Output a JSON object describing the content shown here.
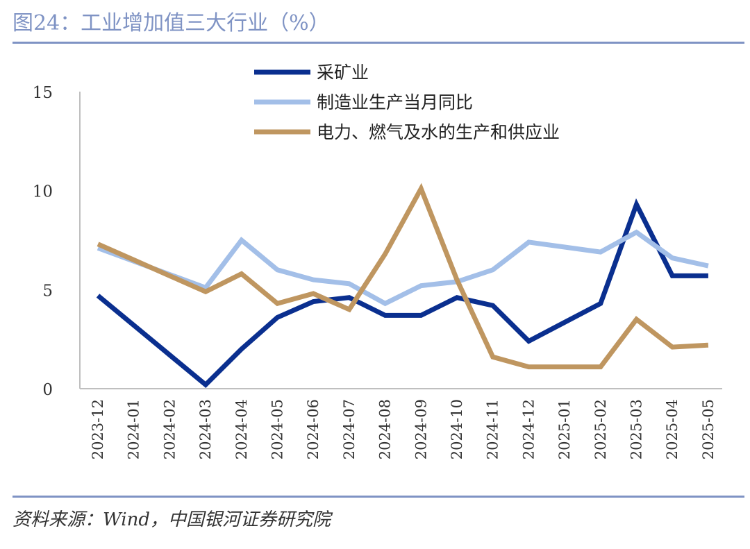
{
  "header": {
    "title": "图24：工业增加值三大行业（%）"
  },
  "footer": {
    "source": "资料来源：Wind，中国银河证券研究院"
  },
  "chart_data": {
    "type": "line",
    "title": "图24：工业增加值三大行业（%）",
    "xlabel": "",
    "ylabel": "",
    "ylim": [
      0,
      15
    ],
    "yticks": [
      0,
      5,
      10,
      15
    ],
    "grid": false,
    "legend_position": "top-center",
    "categories": [
      "2023-12",
      "2024-01",
      "2024-02",
      "2024-03",
      "2024-04",
      "2024-05",
      "2024-06",
      "2024-07",
      "2024-08",
      "2024-09",
      "2024-10",
      "2024-11",
      "2024-12",
      "2025-01",
      "2025-02",
      "2025-03",
      "2025-04",
      "2025-05"
    ],
    "series": [
      {
        "name": "采矿业",
        "color": "#0a2f8f",
        "values": [
          4.7,
          null,
          null,
          0.2,
          2.0,
          3.6,
          4.4,
          4.6,
          3.7,
          3.7,
          4.6,
          4.2,
          2.4,
          null,
          4.3,
          9.3,
          5.7,
          5.7
        ]
      },
      {
        "name": "制造业生产当月同比",
        "color": "#a3bfe8",
        "values": [
          7.1,
          null,
          null,
          5.1,
          7.5,
          6.0,
          5.5,
          5.3,
          4.3,
          5.2,
          5.4,
          6.0,
          7.4,
          null,
          6.9,
          7.9,
          6.6,
          6.2
        ]
      },
      {
        "name": "电力、燃气及水的生产和供应业",
        "color": "#bf9660",
        "values": [
          7.3,
          null,
          null,
          4.9,
          5.8,
          4.3,
          4.8,
          4.0,
          6.8,
          10.1,
          5.5,
          1.6,
          1.1,
          null,
          1.1,
          3.5,
          2.1,
          2.2
        ]
      }
    ]
  }
}
